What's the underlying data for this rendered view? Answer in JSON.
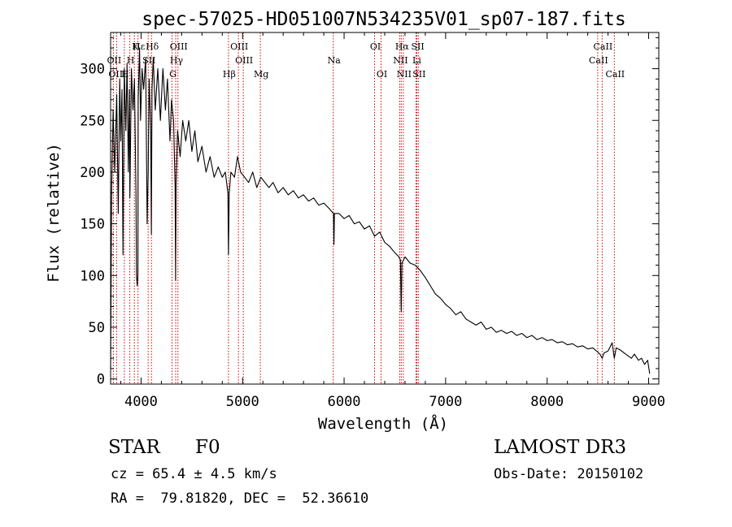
{
  "chart_data": {
    "type": "line",
    "title": "spec-57025-HD051007N534235V01_sp07-187.fits",
    "xlabel": "Wavelength (Å)",
    "ylabel": "Flux (relative)",
    "xlim": [
      3700,
      9100
    ],
    "ylim": [
      -5,
      335
    ],
    "xticks": [
      4000,
      5000,
      6000,
      7000,
      8000,
      9000
    ],
    "yticks": [
      0,
      50,
      100,
      150,
      200,
      250,
      300
    ],
    "series": [
      {
        "name": "flux",
        "color": "#000000",
        "points": [
          [
            3700,
            10
          ],
          [
            3710,
            180
          ],
          [
            3725,
            260
          ],
          [
            3740,
            200
          ],
          [
            3760,
            275
          ],
          [
            3775,
            160
          ],
          [
            3790,
            290
          ],
          [
            3800,
            230
          ],
          [
            3812,
            280
          ],
          [
            3822,
            120
          ],
          [
            3835,
            300
          ],
          [
            3850,
            240
          ],
          [
            3862,
            305
          ],
          [
            3875,
            200
          ],
          [
            3885,
            280
          ],
          [
            3890,
            175
          ],
          [
            3905,
            300
          ],
          [
            3920,
            260
          ],
          [
            3935,
            290
          ],
          [
            3950,
            180
          ],
          [
            3955,
            100
          ],
          [
            3962,
            90
          ],
          [
            3968,
            100
          ],
          [
            3972,
            270
          ],
          [
            3985,
            320
          ],
          [
            3995,
            250
          ],
          [
            4010,
            300
          ],
          [
            4025,
            280
          ],
          [
            4045,
            310
          ],
          [
            4060,
            150
          ],
          [
            4070,
            200
          ],
          [
            4080,
            290
          ],
          [
            4095,
            240
          ],
          [
            4101,
            140
          ],
          [
            4108,
            280
          ],
          [
            4120,
            310
          ],
          [
            4140,
            260
          ],
          [
            4165,
            300
          ],
          [
            4190,
            250
          ],
          [
            4215,
            300
          ],
          [
            4240,
            260
          ],
          [
            4260,
            290
          ],
          [
            4285,
            230
          ],
          [
            4300,
            270
          ],
          [
            4320,
            250
          ],
          [
            4335,
            185
          ],
          [
            4340,
            95
          ],
          [
            4345,
            190
          ],
          [
            4360,
            240
          ],
          [
            4385,
            215
          ],
          [
            4410,
            250
          ],
          [
            4440,
            230
          ],
          [
            4470,
            250
          ],
          [
            4500,
            220
          ],
          [
            4530,
            240
          ],
          [
            4560,
            210
          ],
          [
            4600,
            225
          ],
          [
            4640,
            200
          ],
          [
            4680,
            215
          ],
          [
            4720,
            195
          ],
          [
            4760,
            205
          ],
          [
            4800,
            195
          ],
          [
            4830,
            200
          ],
          [
            4855,
            180
          ],
          [
            4861,
            120
          ],
          [
            4868,
            180
          ],
          [
            4885,
            200
          ],
          [
            4920,
            195
          ],
          [
            4950,
            215
          ],
          [
            4980,
            200
          ],
          [
            5020,
            195
          ],
          [
            5060,
            190
          ],
          [
            5100,
            200
          ],
          [
            5140,
            185
          ],
          [
            5180,
            195
          ],
          [
            5220,
            190
          ],
          [
            5260,
            185
          ],
          [
            5300,
            190
          ],
          [
            5350,
            180
          ],
          [
            5400,
            185
          ],
          [
            5450,
            178
          ],
          [
            5500,
            182
          ],
          [
            5550,
            175
          ],
          [
            5600,
            178
          ],
          [
            5650,
            172
          ],
          [
            5700,
            175
          ],
          [
            5750,
            168
          ],
          [
            5800,
            170
          ],
          [
            5850,
            165
          ],
          [
            5895,
            160
          ],
          [
            5900,
            130
          ],
          [
            5905,
            160
          ],
          [
            5950,
            160
          ],
          [
            6000,
            155
          ],
          [
            6050,
            158
          ],
          [
            6100,
            150
          ],
          [
            6150,
            152
          ],
          [
            6200,
            145
          ],
          [
            6250,
            148
          ],
          [
            6300,
            138
          ],
          [
            6350,
            142
          ],
          [
            6400,
            132
          ],
          [
            6450,
            128
          ],
          [
            6500,
            122
          ],
          [
            6540,
            118
          ],
          [
            6555,
            115
          ],
          [
            6563,
            65
          ],
          [
            6570,
            112
          ],
          [
            6600,
            118
          ],
          [
            6650,
            112
          ],
          [
            6700,
            110
          ],
          [
            6750,
            105
          ],
          [
            6800,
            98
          ],
          [
            6850,
            90
          ],
          [
            6900,
            82
          ],
          [
            6950,
            78
          ],
          [
            7000,
            72
          ],
          [
            7050,
            68
          ],
          [
            7100,
            62
          ],
          [
            7150,
            65
          ],
          [
            7200,
            58
          ],
          [
            7250,
            55
          ],
          [
            7300,
            52
          ],
          [
            7350,
            55
          ],
          [
            7400,
            48
          ],
          [
            7450,
            50
          ],
          [
            7500,
            45
          ],
          [
            7550,
            47
          ],
          [
            7600,
            44
          ],
          [
            7650,
            46
          ],
          [
            7700,
            42
          ],
          [
            7750,
            44
          ],
          [
            7800,
            40
          ],
          [
            7850,
            42
          ],
          [
            7900,
            38
          ],
          [
            7950,
            40
          ],
          [
            8000,
            37
          ],
          [
            8050,
            38
          ],
          [
            8100,
            35
          ],
          [
            8150,
            36
          ],
          [
            8200,
            33
          ],
          [
            8250,
            34
          ],
          [
            8300,
            31
          ],
          [
            8350,
            32
          ],
          [
            8400,
            29
          ],
          [
            8450,
            30
          ],
          [
            8498,
            26
          ],
          [
            8520,
            24
          ],
          [
            8542,
            20
          ],
          [
            8560,
            25
          ],
          [
            8600,
            27
          ],
          [
            8640,
            35
          ],
          [
            8662,
            20
          ],
          [
            8680,
            30
          ],
          [
            8720,
            28
          ],
          [
            8760,
            25
          ],
          [
            8800,
            22
          ],
          [
            8830,
            20
          ],
          [
            8860,
            24
          ],
          [
            8900,
            18
          ],
          [
            8930,
            20
          ],
          [
            8960,
            14
          ],
          [
            8990,
            18
          ],
          [
            9010,
            5
          ]
        ]
      }
    ],
    "lines": [
      {
        "label": "Hε",
        "wavelength": 3970,
        "row": 0
      },
      {
        "label": "K",
        "wavelength": 3934,
        "row": 0
      },
      {
        "label": "Hδ",
        "wavelength": 4102,
        "row": 0
      },
      {
        "label": "OIII",
        "wavelength": 4363,
        "row": 0
      },
      {
        "label": "OIII",
        "wavelength": 4959,
        "row": 0
      },
      {
        "label": "OI",
        "wavelength": 6300,
        "row": 0
      },
      {
        "label": "Hα",
        "wavelength": 6563,
        "row": 0
      },
      {
        "label": "SII",
        "wavelength": 6717,
        "row": 0
      },
      {
        "label": "CaII",
        "wavelength": 8542,
        "row": 0
      },
      {
        "label": "OII",
        "wavelength": 3727,
        "row": 1
      },
      {
        "label": "H",
        "wavelength": 3889,
        "row": 1
      },
      {
        "label": "SII",
        "wavelength": 4070,
        "row": 1
      },
      {
        "label": "Hγ",
        "wavelength": 4341,
        "row": 1
      },
      {
        "label": "OIII",
        "wavelength": 5007,
        "row": 1
      },
      {
        "label": "Na",
        "wavelength": 5893,
        "row": 1
      },
      {
        "label": "NII",
        "wavelength": 6548,
        "row": 1
      },
      {
        "label": "Li",
        "wavelength": 6708,
        "row": 1
      },
      {
        "label": "CaII",
        "wavelength": 8498,
        "row": 1
      },
      {
        "label": "OIII",
        "wavelength": 3759,
        "row": 2
      },
      {
        "label": "H",
        "wavelength": 3835,
        "row": 2
      },
      {
        "label": "G",
        "wavelength": 4305,
        "row": 2
      },
      {
        "label": "Hβ",
        "wavelength": 4861,
        "row": 2
      },
      {
        "label": "Mg",
        "wavelength": 5175,
        "row": 2
      },
      {
        "label": "OI",
        "wavelength": 6364,
        "row": 2
      },
      {
        "label": "NII",
        "wavelength": 6583,
        "row": 2
      },
      {
        "label": "SII",
        "wavelength": 6731,
        "row": 2
      },
      {
        "label": "CaII",
        "wavelength": 8662,
        "row": 2
      }
    ]
  },
  "info": {
    "object_class": "STAR",
    "subclass": "F0",
    "survey": "LAMOST DR3",
    "velocity": "cz = 65.4 ± 4.5 km/s",
    "obs_date": "Obs-Date: 20150102",
    "coords": "RA =  79.81820, DEC =  52.36610"
  },
  "colors": {
    "line_marker": "#cc0000",
    "spectrum": "#000000"
  }
}
